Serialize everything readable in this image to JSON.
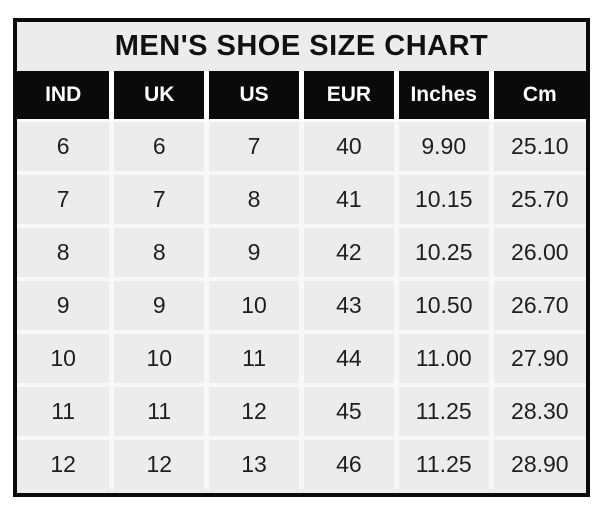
{
  "title": "MEN'S SHOE SIZE CHART",
  "colors": {
    "outer_border": "#0b0b0b",
    "title_bg": "#ececec",
    "header_bg": "#0a0a0a",
    "header_text": "#ffffff",
    "cell_bg": "#ececec",
    "cell_text": "#1f1f1f",
    "divider": "#f8f8f8",
    "page_bg": "#ffffff"
  },
  "chart_data": {
    "type": "table",
    "title": "MEN'S SHOE SIZE CHART",
    "columns": [
      "IND",
      "UK",
      "US",
      "EUR",
      "Inches",
      "Cm"
    ],
    "rows": [
      [
        "6",
        "6",
        "7",
        "40",
        "9.90",
        "25.10"
      ],
      [
        "7",
        "7",
        "8",
        "41",
        "10.15",
        "25.70"
      ],
      [
        "8",
        "8",
        "9",
        "42",
        "10.25",
        "26.00"
      ],
      [
        "9",
        "9",
        "10",
        "43",
        "10.50",
        "26.70"
      ],
      [
        "10",
        "10",
        "11",
        "44",
        "11.00",
        "27.90"
      ],
      [
        "11",
        "11",
        "12",
        "45",
        "11.25",
        "28.30"
      ],
      [
        "12",
        "12",
        "13",
        "46",
        "11.25",
        "28.90"
      ]
    ]
  }
}
